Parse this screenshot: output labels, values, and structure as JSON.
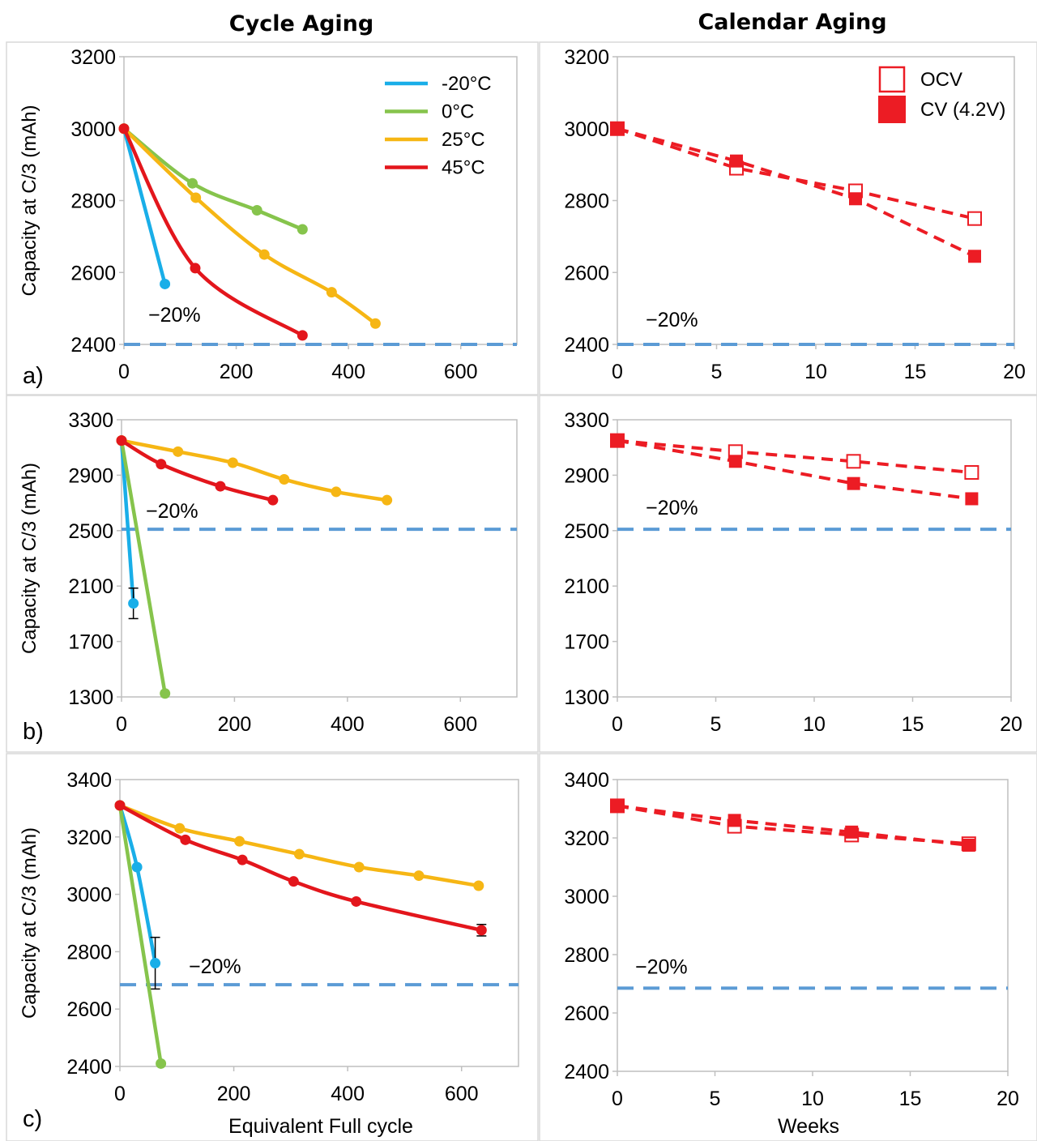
{
  "column_titles": [
    "Cycle Aging",
    "Calendar Aging"
  ],
  "threshold_color": "#5b9bd5",
  "colors": {
    "-20C": "#19aee8",
    "0C": "#86c44c",
    "25C": "#f6b614",
    "45C": "#e3161c",
    "calendar": "#ec1c24"
  },
  "chart_data": [
    {
      "type": "line",
      "panel": "a)",
      "column": "Cycle Aging",
      "ylabel": "Capacity at C/3 (mAh)",
      "xlabel": "",
      "xlim": [
        0,
        700
      ],
      "ylim": [
        2400,
        3200
      ],
      "xticks": [
        0,
        200,
        400,
        600
      ],
      "yticks": [
        2400,
        2600,
        2800,
        3000,
        3200
      ],
      "legend": {
        "position": "top-right"
      },
      "series": [
        {
          "name": "-20°C",
          "color": "#19aee8",
          "x": [
            0,
            73
          ],
          "y": [
            3000,
            2568
          ]
        },
        {
          "name": "0°C",
          "color": "#86c44c",
          "x": [
            0,
            122,
            237,
            318
          ],
          "y": [
            3000,
            2848,
            2773,
            2720
          ]
        },
        {
          "name": "25°C",
          "color": "#f6b614",
          "x": [
            0,
            128,
            250,
            370,
            448
          ],
          "y": [
            3000,
            2808,
            2650,
            2545,
            2458
          ]
        },
        {
          "name": "45°C",
          "color": "#e3161c",
          "x": [
            0,
            127,
            318
          ],
          "y": [
            3000,
            2612,
            2425
          ]
        }
      ],
      "threshold": {
        "y": 2400,
        "label": "−20%"
      }
    },
    {
      "type": "line",
      "panel": "a)",
      "column": "Calendar Aging",
      "ylabel": "",
      "xlabel": "",
      "xlim": [
        0,
        20
      ],
      "ylim": [
        2400,
        3200
      ],
      "xticks": [
        0,
        5,
        10,
        15,
        20
      ],
      "yticks": [
        2400,
        2600,
        2800,
        3000,
        3200
      ],
      "legend": {
        "position": "top-right"
      },
      "series": [
        {
          "name": "OCV",
          "color": "#ec1c24",
          "marker": "open-square",
          "x": [
            0,
            6,
            12,
            18
          ],
          "y": [
            3000,
            2890,
            2827,
            2750
          ]
        },
        {
          "name": "CV (4.2V)",
          "color": "#ec1c24",
          "marker": "filled-square",
          "x": [
            0,
            6,
            12,
            18
          ],
          "y": [
            3000,
            2910,
            2805,
            2645
          ]
        }
      ],
      "threshold": {
        "y": 2400,
        "label": "−20%"
      }
    },
    {
      "type": "line",
      "panel": "b)",
      "column": "Cycle Aging",
      "ylabel": "Capacity at C/3 (mAh)",
      "xlabel": "",
      "xlim": [
        0,
        700
      ],
      "ylim": [
        1300,
        3300
      ],
      "xticks": [
        0,
        200,
        400,
        600
      ],
      "yticks": [
        1300,
        1700,
        2100,
        2500,
        2900,
        3300
      ],
      "series": [
        {
          "name": "-20°C",
          "color": "#19aee8",
          "x": [
            0,
            21
          ],
          "y": [
            3150,
            1975
          ],
          "err": [
            0,
            110
          ]
        },
        {
          "name": "0°C",
          "color": "#86c44c",
          "x": [
            0,
            77
          ],
          "y": [
            3150,
            1325
          ]
        },
        {
          "name": "25°C",
          "color": "#f6b614",
          "x": [
            0,
            100,
            197,
            288,
            380,
            470
          ],
          "y": [
            3150,
            3070,
            2990,
            2870,
            2780,
            2720
          ]
        },
        {
          "name": "45°C",
          "color": "#e3161c",
          "x": [
            0,
            70,
            175,
            268
          ],
          "y": [
            3150,
            2980,
            2820,
            2720
          ]
        }
      ],
      "threshold": {
        "y": 2510,
        "label": "−20%"
      }
    },
    {
      "type": "line",
      "panel": "b)",
      "column": "Calendar Aging",
      "ylabel": "",
      "xlabel": "",
      "xlim": [
        0,
        20
      ],
      "ylim": [
        1300,
        3300
      ],
      "xticks": [
        0,
        5,
        10,
        15,
        20
      ],
      "yticks": [
        1300,
        1700,
        2100,
        2500,
        2900,
        3300
      ],
      "series": [
        {
          "name": "OCV",
          "color": "#ec1c24",
          "marker": "open-square",
          "x": [
            0,
            6,
            12,
            18
          ],
          "y": [
            3150,
            3070,
            3000,
            2920
          ]
        },
        {
          "name": "CV (4.2V)",
          "color": "#ec1c24",
          "marker": "filled-square",
          "x": [
            0,
            6,
            12,
            18
          ],
          "y": [
            3150,
            3000,
            2840,
            2730
          ]
        }
      ],
      "threshold": {
        "y": 2510,
        "label": "−20%"
      }
    },
    {
      "type": "line",
      "panel": "c)",
      "column": "Cycle Aging",
      "ylabel": "Capacity at C/3 (mAh)",
      "xlabel": "Equivalent Full cycle",
      "xlim": [
        0,
        700
      ],
      "ylim": [
        2400,
        3400
      ],
      "xticks": [
        0,
        200,
        400,
        600
      ],
      "yticks": [
        2400,
        2600,
        2800,
        3000,
        3200,
        3400
      ],
      "series": [
        {
          "name": "-20°C",
          "color": "#19aee8",
          "x": [
            0,
            30,
            62
          ],
          "y": [
            3310,
            3095,
            2760
          ],
          "err": [
            0,
            0,
            90
          ]
        },
        {
          "name": "0°C",
          "color": "#86c44c",
          "x": [
            0,
            72
          ],
          "y": [
            3310,
            2410
          ]
        },
        {
          "name": "25°C",
          "color": "#f6b614",
          "x": [
            0,
            105,
            210,
            315,
            420,
            525,
            630
          ],
          "y": [
            3310,
            3230,
            3185,
            3140,
            3095,
            3065,
            3030
          ]
        },
        {
          "name": "45°C",
          "color": "#e3161c",
          "x": [
            0,
            115,
            215,
            305,
            415,
            635
          ],
          "y": [
            3310,
            3190,
            3120,
            3045,
            2975,
            2875
          ],
          "err": [
            0,
            0,
            0,
            0,
            0,
            20
          ]
        }
      ],
      "threshold": {
        "y": 2685,
        "label": "−20%"
      }
    },
    {
      "type": "line",
      "panel": "c)",
      "column": "Calendar Aging",
      "ylabel": "",
      "xlabel": "Weeks",
      "xlim": [
        0,
        20
      ],
      "ylim": [
        2400,
        3400
      ],
      "xticks": [
        0,
        5,
        10,
        15,
        20
      ],
      "yticks": [
        2400,
        2600,
        2800,
        3000,
        3200,
        3400
      ],
      "series": [
        {
          "name": "OCV",
          "color": "#ec1c24",
          "marker": "open-square",
          "x": [
            0,
            6,
            12,
            18
          ],
          "y": [
            3310,
            3240,
            3210,
            3180
          ]
        },
        {
          "name": "CV (4.2V)",
          "color": "#ec1c24",
          "marker": "filled-square",
          "x": [
            0,
            6,
            12,
            18
          ],
          "y": [
            3310,
            3260,
            3220,
            3175
          ]
        }
      ],
      "threshold": {
        "y": 2685,
        "label": "−20%"
      }
    }
  ]
}
